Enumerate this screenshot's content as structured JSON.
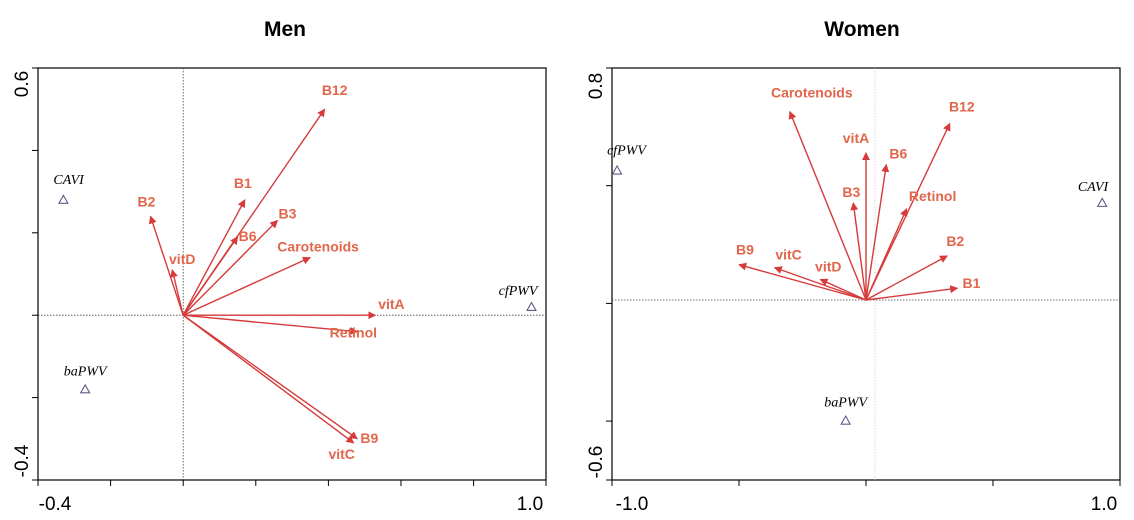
{
  "chart_data": [
    {
      "type": "biplot",
      "title": "Men",
      "xlim": [
        -0.4,
        1.0
      ],
      "ylim": [
        -0.4,
        0.6
      ],
      "x_tick_labels": [
        "-0.4",
        "1.0"
      ],
      "y_tick_labels": [
        "0.6",
        "-0.4"
      ],
      "vectors": [
        {
          "label": "B12",
          "x": 0.39,
          "y": 0.5
        },
        {
          "label": "B1",
          "x": 0.17,
          "y": 0.28
        },
        {
          "label": "B3",
          "x": 0.26,
          "y": 0.23
        },
        {
          "label": "B6",
          "x": 0.15,
          "y": 0.19
        },
        {
          "label": "B2",
          "x": -0.09,
          "y": 0.24
        },
        {
          "label": "vitD",
          "x": -0.03,
          "y": 0.11
        },
        {
          "label": "Carotenoids",
          "x": 0.35,
          "y": 0.14
        },
        {
          "label": "vitA",
          "x": 0.53,
          "y": 0.0
        },
        {
          "label": "Retinol",
          "x": 0.48,
          "y": -0.04
        },
        {
          "label": "B9",
          "x": 0.48,
          "y": -0.3
        },
        {
          "label": "vitC",
          "x": 0.47,
          "y": -0.31
        }
      ],
      "points": [
        {
          "label": "CAVI",
          "x": -0.33,
          "y": 0.28
        },
        {
          "label": "cfPWV",
          "x": 0.96,
          "y": 0.02
        },
        {
          "label": "baPWV",
          "x": -0.27,
          "y": -0.18
        }
      ],
      "vector_color": "#d63a3a",
      "vector_label_color": "#e2664b",
      "point_color": "#5b5b8a"
    },
    {
      "type": "biplot",
      "title": "Women",
      "xlim": [
        -1.0,
        1.0
      ],
      "ylim": [
        -0.6,
        0.8
      ],
      "x_tick_labels": [
        "-1.0",
        "1.0"
      ],
      "y_tick_labels": [
        "0.8",
        "-0.6"
      ],
      "vectors": [
        {
          "label": "Carotenoids",
          "x": -0.3,
          "y": 0.64
        },
        {
          "label": "B12",
          "x": 0.33,
          "y": 0.6
        },
        {
          "label": "vitA",
          "x": 0.0,
          "y": 0.5
        },
        {
          "label": "B6",
          "x": 0.08,
          "y": 0.46
        },
        {
          "label": "B3",
          "x": -0.05,
          "y": 0.33
        },
        {
          "label": "Retinol",
          "x": 0.16,
          "y": 0.31
        },
        {
          "label": "B2",
          "x": 0.32,
          "y": 0.15
        },
        {
          "label": "B1",
          "x": 0.36,
          "y": 0.04
        },
        {
          "label": "B9",
          "x": -0.5,
          "y": 0.12
        },
        {
          "label": "vitC",
          "x": -0.36,
          "y": 0.11
        },
        {
          "label": "vitD",
          "x": -0.18,
          "y": 0.07
        }
      ],
      "points": [
        {
          "label": "cfPWV",
          "x": -0.98,
          "y": 0.44
        },
        {
          "label": "CAVI",
          "x": 0.93,
          "y": 0.33
        },
        {
          "label": "baPWV",
          "x": -0.08,
          "y": -0.41
        }
      ],
      "vector_color": "#d63a3a",
      "vector_label_color": "#e2664b",
      "point_color": "#5b5b8a"
    }
  ]
}
